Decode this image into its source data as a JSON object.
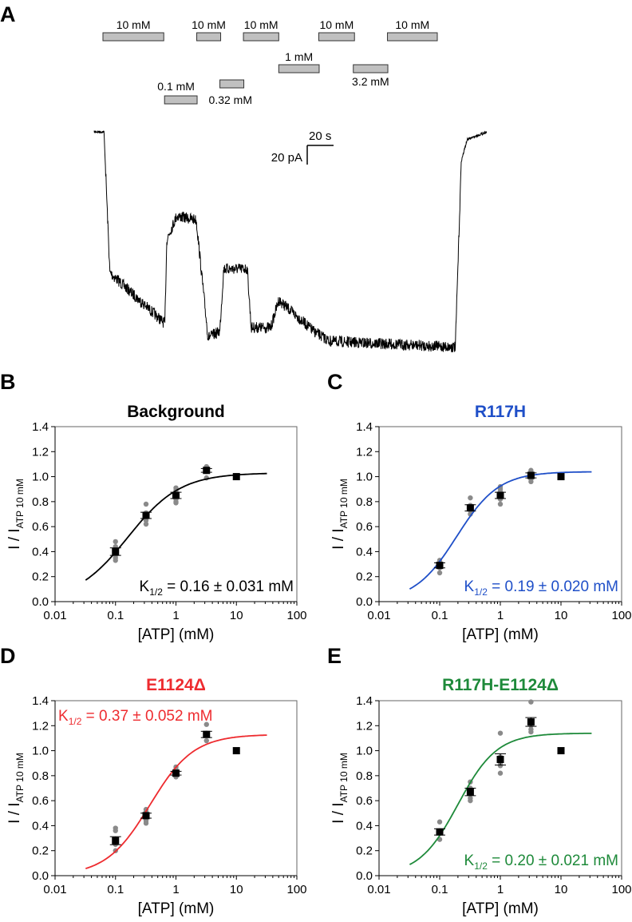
{
  "panel_a": {
    "letter": "A",
    "scale_bar": {
      "time_label": "20 s",
      "current_label": "20 pA"
    },
    "applications": [
      {
        "label": "10 mM",
        "row": 0,
        "start": 0.0,
        "end": 0.155
      },
      {
        "label": "0.1 mM",
        "row": 3,
        "start": 0.157,
        "end": 0.24
      },
      {
        "label": "10 mM",
        "row": 0,
        "start": 0.239,
        "end": 0.3
      },
      {
        "label": "0.32 mM",
        "row": 2,
        "start": 0.298,
        "end": 0.359
      },
      {
        "label": "10 mM",
        "row": 0,
        "start": 0.358,
        "end": 0.448
      },
      {
        "label": "1 mM",
        "row": 1,
        "start": 0.448,
        "end": 0.551
      },
      {
        "label": "10 mM",
        "row": 0,
        "start": 0.55,
        "end": 0.641
      },
      {
        "label": "3.2 mM",
        "row": 1,
        "start": 0.638,
        "end": 0.726
      },
      {
        "label": "10 mM",
        "row": 0,
        "start": 0.725,
        "end": 0.852
      }
    ],
    "trace_levels": [
      {
        "t": 0.0,
        "i": 0.0
      },
      {
        "t": 0.025,
        "i": 0.0
      },
      {
        "t": 0.04,
        "i": -0.72
      },
      {
        "t": 0.18,
        "i": -0.98
      },
      {
        "t": 0.185,
        "i": -0.55
      },
      {
        "t": 0.21,
        "i": -0.43
      },
      {
        "t": 0.26,
        "i": -0.45
      },
      {
        "t": 0.29,
        "i": -1.05
      },
      {
        "t": 0.32,
        "i": -1.02
      },
      {
        "t": 0.33,
        "i": -0.7
      },
      {
        "t": 0.39,
        "i": -0.7
      },
      {
        "t": 0.4,
        "i": -1.0
      },
      {
        "t": 0.45,
        "i": -1.0
      },
      {
        "t": 0.47,
        "i": -0.86
      },
      {
        "t": 0.56,
        "i": -1.02
      },
      {
        "t": 0.6,
        "i": -1.07
      },
      {
        "t": 0.92,
        "i": -1.1
      },
      {
        "t": 0.935,
        "i": -0.15
      },
      {
        "t": 0.95,
        "i": -0.04
      },
      {
        "t": 1.0,
        "i": 0.0
      }
    ]
  },
  "chart_data": [
    {
      "panel": "B",
      "type": "scatter",
      "title": "Background",
      "color": "#000000",
      "xlabel": "[ATP] (mM)",
      "ylabel_main": "I / I",
      "ylabel_sub": "ATP 10 mM",
      "xscale": "log",
      "xlim": [
        0.01,
        100
      ],
      "ylim": [
        0,
        1.4
      ],
      "xticks": [
        "0.01",
        "0.1",
        "1",
        "10",
        "100"
      ],
      "yticks": [
        "0.0",
        "0.2",
        "0.4",
        "0.6",
        "0.8",
        "1.0",
        "1.2",
        "1.4"
      ],
      "annotation": {
        "k": "K",
        "sub": "1/2",
        "text": " = 0.16 ± 0.031 mM",
        "position": "bottom-right"
      },
      "fit": {
        "K": 0.16,
        "Imax": 1.03,
        "n": 1.0,
        "x_range": [
          0.032,
          32
        ]
      },
      "means": [
        {
          "x": 0.1,
          "y": 0.4,
          "err": 0.03
        },
        {
          "x": 0.32,
          "y": 0.69,
          "err": 0.025
        },
        {
          "x": 1,
          "y": 0.85,
          "err": 0.025
        },
        {
          "x": 3.2,
          "y": 1.05,
          "err": 0.015
        },
        {
          "x": 10,
          "y": 1.0,
          "err": 0
        }
      ],
      "points": [
        {
          "x": 0.1,
          "ys": [
            0.48,
            0.44,
            0.42,
            0.4,
            0.37,
            0.35,
            0.33
          ]
        },
        {
          "x": 0.32,
          "ys": [
            0.78,
            0.71,
            0.7,
            0.68,
            0.65,
            0.62
          ]
        },
        {
          "x": 1,
          "ys": [
            0.91,
            0.89,
            0.87,
            0.85,
            0.82,
            0.8,
            0.79
          ]
        },
        {
          "x": 3.2,
          "ys": [
            1.08,
            1.07,
            1.06,
            1.05,
            1.04,
            0.99
          ]
        }
      ]
    },
    {
      "panel": "C",
      "type": "scatter",
      "title": "R117H",
      "color": "#1f4fc8",
      "xlabel": "[ATP] (mM)",
      "ylabel_main": "I / I",
      "ylabel_sub": "ATP 10 mM",
      "xscale": "log",
      "xlim": [
        0.01,
        100
      ],
      "ylim": [
        0,
        1.4
      ],
      "xticks": [
        "0.01",
        "0.1",
        "1",
        "10",
        "100"
      ],
      "yticks": [
        "0.0",
        "0.2",
        "0.4",
        "0.6",
        "0.8",
        "1.0",
        "1.2",
        "1.4"
      ],
      "annotation": {
        "k": "K",
        "sub": "1/2",
        "text": " = 0.19 ± 0.020 mM",
        "position": "bottom-right"
      },
      "fit": {
        "K": 0.19,
        "Imax": 1.04,
        "n": 1.25,
        "x_range": [
          0.032,
          32
        ]
      },
      "means": [
        {
          "x": 0.1,
          "y": 0.29,
          "err": 0.02
        },
        {
          "x": 0.32,
          "y": 0.75,
          "err": 0.025
        },
        {
          "x": 1,
          "y": 0.85,
          "err": 0.025
        },
        {
          "x": 3.2,
          "y": 1.01,
          "err": 0.02
        },
        {
          "x": 10,
          "y": 1.0,
          "err": 0
        }
      ],
      "points": [
        {
          "x": 0.1,
          "ys": [
            0.33,
            0.31,
            0.29,
            0.27,
            0.23
          ]
        },
        {
          "x": 0.32,
          "ys": [
            0.83,
            0.77,
            0.75,
            0.73,
            0.7
          ]
        },
        {
          "x": 1,
          "ys": [
            0.92,
            0.9,
            0.88,
            0.85,
            0.82,
            0.78
          ]
        },
        {
          "x": 3.2,
          "ys": [
            1.05,
            1.04,
            1.02,
            1.0,
            0.98,
            0.96
          ]
        }
      ]
    },
    {
      "panel": "D",
      "type": "scatter",
      "title": "E1124Δ",
      "color": "#ee2b2f",
      "xlabel": "[ATP] (mM)",
      "ylabel_main": "I / I",
      "ylabel_sub": "ATP 10 mM",
      "xscale": "log",
      "xlim": [
        0.01,
        100
      ],
      "ylim": [
        0,
        1.4
      ],
      "xticks": [
        "0.01",
        "0.1",
        "1",
        "10",
        "100"
      ],
      "yticks": [
        "0.0",
        "0.2",
        "0.4",
        "0.6",
        "0.8",
        "1.0",
        "1.2",
        "1.4"
      ],
      "annotation": {
        "k": "K",
        "sub": "1/2",
        "text": " = 0.37 ± 0.052 mM",
        "position": "top-left"
      },
      "fit": {
        "K": 0.37,
        "Imax": 1.13,
        "n": 1.2,
        "x_range": [
          0.032,
          32
        ]
      },
      "means": [
        {
          "x": 0.1,
          "y": 0.28,
          "err": 0.032
        },
        {
          "x": 0.32,
          "y": 0.48,
          "err": 0.02
        },
        {
          "x": 1,
          "y": 0.82,
          "err": 0.015
        },
        {
          "x": 3.2,
          "y": 1.13,
          "err": 0.025
        },
        {
          "x": 10,
          "y": 1.0,
          "err": 0
        }
      ],
      "points": [
        {
          "x": 0.1,
          "ys": [
            0.38,
            0.36,
            0.25,
            0.2
          ]
        },
        {
          "x": 0.32,
          "ys": [
            0.53,
            0.51,
            0.48,
            0.46,
            0.44,
            0.42
          ]
        },
        {
          "x": 1,
          "ys": [
            0.87,
            0.85,
            0.83,
            0.81,
            0.79
          ]
        },
        {
          "x": 3.2,
          "ys": [
            1.21,
            1.14,
            1.08
          ]
        }
      ]
    },
    {
      "panel": "E",
      "type": "scatter",
      "title": "R117H-E1124Δ",
      "color": "#1e8a3a",
      "xlabel": "[ATP] (mM)",
      "ylabel_main": "I / I",
      "ylabel_sub": "ATP 10 mM",
      "xscale": "log",
      "xlim": [
        0.01,
        100
      ],
      "ylim": [
        0,
        1.4
      ],
      "xticks": [
        "0.01",
        "0.1",
        "1",
        "10",
        "100"
      ],
      "yticks": [
        "0.0",
        "0.2",
        "0.4",
        "0.6",
        "0.8",
        "1.0",
        "1.2",
        "1.4"
      ],
      "annotation": {
        "k": "K",
        "sub": "1/2",
        "text": " = 0.20 ± 0.021 mM",
        "position": "bottom-right"
      },
      "fit": {
        "K": 0.2,
        "Imax": 1.14,
        "n": 1.35,
        "x_range": [
          0.032,
          32
        ]
      },
      "means": [
        {
          "x": 0.1,
          "y": 0.35,
          "err": 0.025
        },
        {
          "x": 0.32,
          "y": 0.67,
          "err": 0.03
        },
        {
          "x": 1,
          "y": 0.93,
          "err": 0.045
        },
        {
          "x": 3.2,
          "y": 1.23,
          "err": 0.035
        },
        {
          "x": 10,
          "y": 1.0,
          "err": 0
        }
      ],
      "points": [
        {
          "x": 0.1,
          "ys": [
            0.43,
            0.36,
            0.34,
            0.29
          ]
        },
        {
          "x": 0.32,
          "ys": [
            0.75,
            0.7,
            0.66,
            0.62,
            0.6
          ]
        },
        {
          "x": 1,
          "ys": [
            1.14,
            0.95,
            0.9,
            0.88,
            0.82
          ]
        },
        {
          "x": 3.2,
          "ys": [
            1.39,
            1.24,
            1.2,
            1.17,
            1.15
          ]
        }
      ]
    }
  ]
}
